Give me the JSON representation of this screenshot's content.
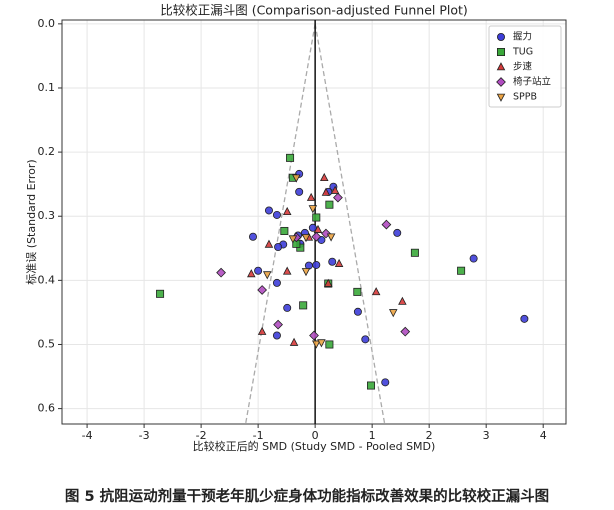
{
  "chart_data": {
    "type": "scatter",
    "title": "比较校正漏斗图 (Comparison-adjusted Funnel Plot)",
    "x_label": "比较校正后的 SMD (Study SMD - Pooled SMD)",
    "y_label": "标准误 (Standard Error)",
    "caption": "图 5  抗阻运动剂量干预老年肌少症身体功能指标改善效果的比较校正漏斗图",
    "xlim": [
      -4.44,
      4.4
    ],
    "ylim": [
      -0.006,
      0.624
    ],
    "y_inverted": true,
    "xticks": [
      -4,
      -3,
      -2,
      -1,
      0,
      1,
      2,
      3,
      4
    ],
    "yticks": [
      {
        "value": 0,
        "label": "0.0"
      },
      0.1,
      0.2,
      0.3,
      0.4,
      0.5,
      0.6
    ],
    "grid": true,
    "legend": "upper right",
    "vline": 0,
    "reference_lines": [
      {
        "x": [
          0,
          -1.22
        ],
        "y": [
          0,
          0.624
        ]
      },
      {
        "x": [
          0,
          1.22
        ],
        "y": [
          0,
          0.624
        ]
      }
    ],
    "series": [
      {
        "name": "握力",
        "color": "#3d3dd8",
        "marker": "circle",
        "x": [
          -0.28,
          0.32,
          -0.28,
          0.23,
          -0.81,
          -0.67,
          -0.04,
          -0.18,
          -0.3,
          -0.56,
          -0.65,
          0.11,
          -1.09,
          -0.26,
          0.02,
          0.3,
          -1.0,
          -0.67,
          1.44,
          2.78,
          3.67,
          0.75,
          1.23,
          0.88,
          -0.49,
          -0.67,
          -0.11
        ],
        "values": [
          0.234,
          0.254,
          0.262,
          0.262,
          0.291,
          0.298,
          0.318,
          0.326,
          0.33,
          0.344,
          0.348,
          0.337,
          0.332,
          0.343,
          0.376,
          0.371,
          0.385,
          0.404,
          0.326,
          0.366,
          0.46,
          0.449,
          0.559,
          0.492,
          0.443,
          0.486,
          0.377
        ]
      },
      {
        "name": "TUG",
        "color": "#3aa83a",
        "marker": "square",
        "x": [
          -0.44,
          -0.39,
          0.02,
          0.25,
          -0.54,
          -0.26,
          1.75,
          2.56,
          -2.72,
          0.74,
          -0.21,
          0.25,
          0.98,
          0.23,
          -0.33
        ],
        "values": [
          0.209,
          0.24,
          0.302,
          0.282,
          0.323,
          0.349,
          0.357,
          0.385,
          0.421,
          0.418,
          0.439,
          0.5,
          0.564,
          0.405,
          0.343
        ]
      },
      {
        "name": "步速",
        "color": "#d63a3a",
        "marker": "triangle-up",
        "x": [
          0.35,
          0.19,
          -0.49,
          -0.07,
          0.16,
          -0.81,
          -0.49,
          0.42,
          0.23,
          1.07,
          1.53,
          -0.93,
          -0.37,
          -1.12,
          0.05,
          -0.11
        ],
        "values": [
          0.26,
          0.263,
          0.293,
          0.271,
          0.24,
          0.344,
          0.386,
          0.374,
          0.405,
          0.418,
          0.433,
          0.48,
          0.497,
          0.39,
          0.321,
          0.333
        ]
      },
      {
        "name": "椅子站立",
        "color": "#b04cc0",
        "marker": "diamond",
        "x": [
          1.25,
          0.4,
          -1.65,
          -0.33,
          0.02,
          -0.93,
          -0.65,
          1.58,
          -0.02,
          0.19
        ],
        "values": [
          0.313,
          0.271,
          0.388,
          0.333,
          0.332,
          0.415,
          0.469,
          0.48,
          0.486,
          0.327
        ]
      },
      {
        "name": "SPPB",
        "color": "#eca444",
        "marker": "triangle-down",
        "x": [
          -0.33,
          -0.84,
          0.28,
          -0.16,
          -0.04,
          1.37,
          0.02,
          0.11,
          -0.16,
          -0.39
        ],
        "values": [
          0.24,
          0.391,
          0.332,
          0.386,
          0.288,
          0.45,
          0.499,
          0.497,
          0.333,
          0.335
        ]
      }
    ]
  }
}
